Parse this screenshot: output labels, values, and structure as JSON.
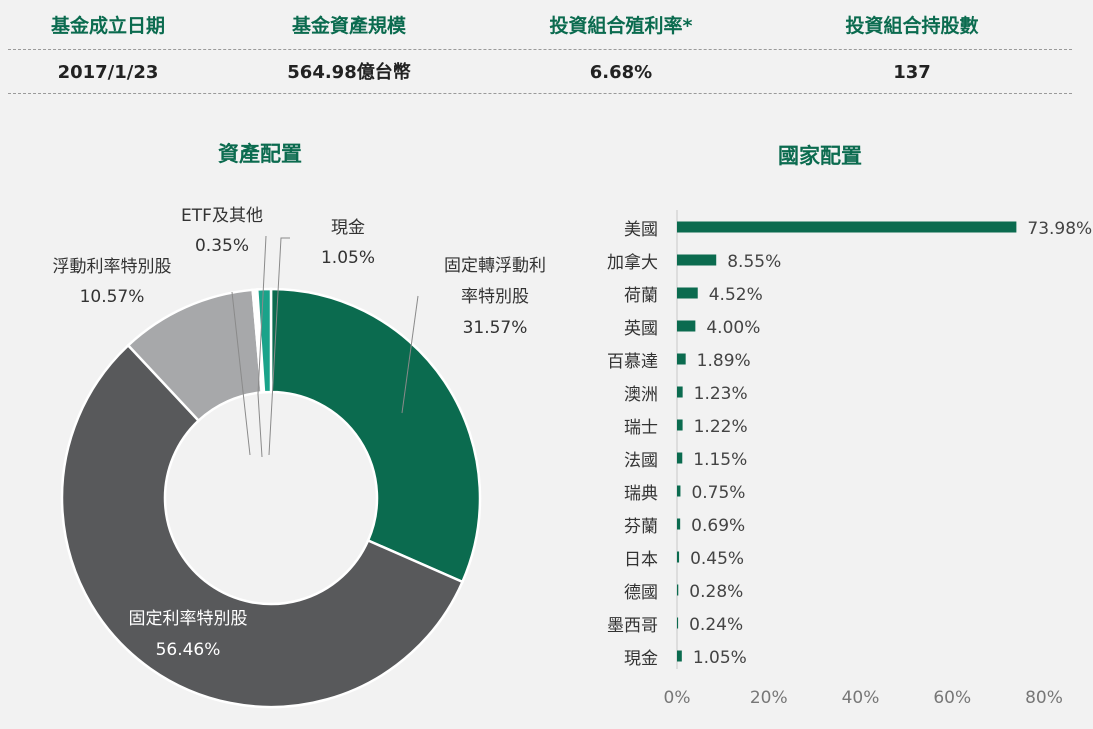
{
  "stats": {
    "headers": [
      "基金成立日期",
      "基金資產規模",
      "投資組合殖利率*",
      "投資組合持股數"
    ],
    "values": [
      "2017/1/23",
      "564.98億台幣",
      "6.68%",
      "137"
    ]
  },
  "colors": {
    "accent_green": "#0b6b4f",
    "dark_gray": "#58595b",
    "light_gray": "#a7a8aa",
    "teal": "#1aa38a",
    "background": "#f2f2f2"
  },
  "chart_data": [
    {
      "type": "pie",
      "title": "資產配置",
      "donut": true,
      "slices": [
        {
          "label": "固定轉浮動利率特別股",
          "label_lines": [
            "固定轉浮動利",
            "率特別股"
          ],
          "value": 31.57,
          "value_label": "31.57%",
          "color": "#0b6b4f"
        },
        {
          "label": "固定利率特別股",
          "label_lines": [
            "固定利率特別股"
          ],
          "value": 56.46,
          "value_label": "56.46%",
          "color": "#58595b"
        },
        {
          "label": "浮動利率特別股",
          "label_lines": [
            "浮動利率特別股"
          ],
          "value": 10.57,
          "value_label": "10.57%",
          "color": "#a7a8aa"
        },
        {
          "label": "ETF及其他",
          "label_lines": [
            "ETF及其他"
          ],
          "value": 0.35,
          "value_label": "0.35%",
          "color": "#ffffff"
        },
        {
          "label": "現金",
          "label_lines": [
            "現金"
          ],
          "value": 1.05,
          "value_label": "1.05%",
          "color": "#1aa38a"
        }
      ]
    },
    {
      "type": "bar",
      "orientation": "horizontal",
      "title": "國家配置",
      "categories": [
        "美國",
        "加拿大",
        "荷蘭",
        "英國",
        "百慕達",
        "澳洲",
        "瑞士",
        "法國",
        "瑞典",
        "芬蘭",
        "日本",
        "德國",
        "墨西哥",
        "現金"
      ],
      "values": [
        73.98,
        8.55,
        4.52,
        4.0,
        1.89,
        1.23,
        1.22,
        1.15,
        0.75,
        0.69,
        0.45,
        0.28,
        0.24,
        1.05
      ],
      "value_labels": [
        "73.98%",
        "8.55%",
        "4.52%",
        "4.00%",
        "1.89%",
        "1.23%",
        "1.22%",
        "1.15%",
        "0.75%",
        "0.69%",
        "0.45%",
        "0.28%",
        "0.24%",
        "1.05%"
      ],
      "xlim": [
        0,
        80
      ],
      "xticks": [
        "0%",
        "20%",
        "40%",
        "60%",
        "80%"
      ],
      "bar_color": "#0b6b4f",
      "grid": false
    }
  ]
}
